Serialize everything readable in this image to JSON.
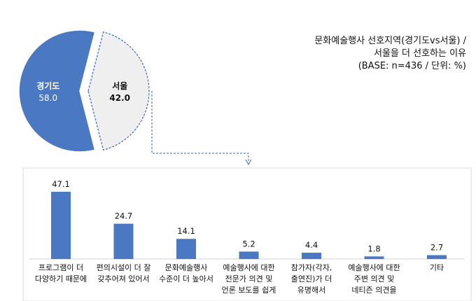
{
  "chart_data": [
    {
      "type": "pie",
      "title": "문화예술행사 선호지역(경기도vs서울) /",
      "subtitle": "서울을 더 선호하는 이유",
      "note": "(BASE: n=436 / 단위: %)",
      "slices": [
        {
          "label": "경기도",
          "value": 58.0,
          "display": "58.0",
          "color": "#4a78c2"
        },
        {
          "label": "서울",
          "value": 42.0,
          "display": "42.0",
          "color": "#efefef"
        }
      ]
    },
    {
      "type": "bar",
      "categories": [
        [
          "프로그램이 더",
          "다양하기 때문에"
        ],
        [
          "편의시설이 더 잘",
          "갖추어져 있어서"
        ],
        [
          "문화예술행사",
          "수준이 더 높아서"
        ],
        [
          "예술행사에 대한",
          "전문가 의견 및",
          "언론 보도를 쉽게"
        ],
        [
          "참가자(각자,",
          "출연진)가 더",
          "유명해서"
        ],
        [
          "예술행사에 대한",
          "주변 의견 및",
          "네티즌 의견을"
        ],
        [
          "기타"
        ]
      ],
      "values": [
        47.1,
        24.7,
        14.1,
        5.2,
        4.4,
        1.8,
        2.7
      ],
      "value_labels": [
        "47.1",
        "24.7",
        "14.1",
        "5.2",
        "4.4",
        "1.8",
        "2.7"
      ],
      "bar_color": "#4a78c2",
      "ylim": [
        0,
        50
      ]
    }
  ]
}
